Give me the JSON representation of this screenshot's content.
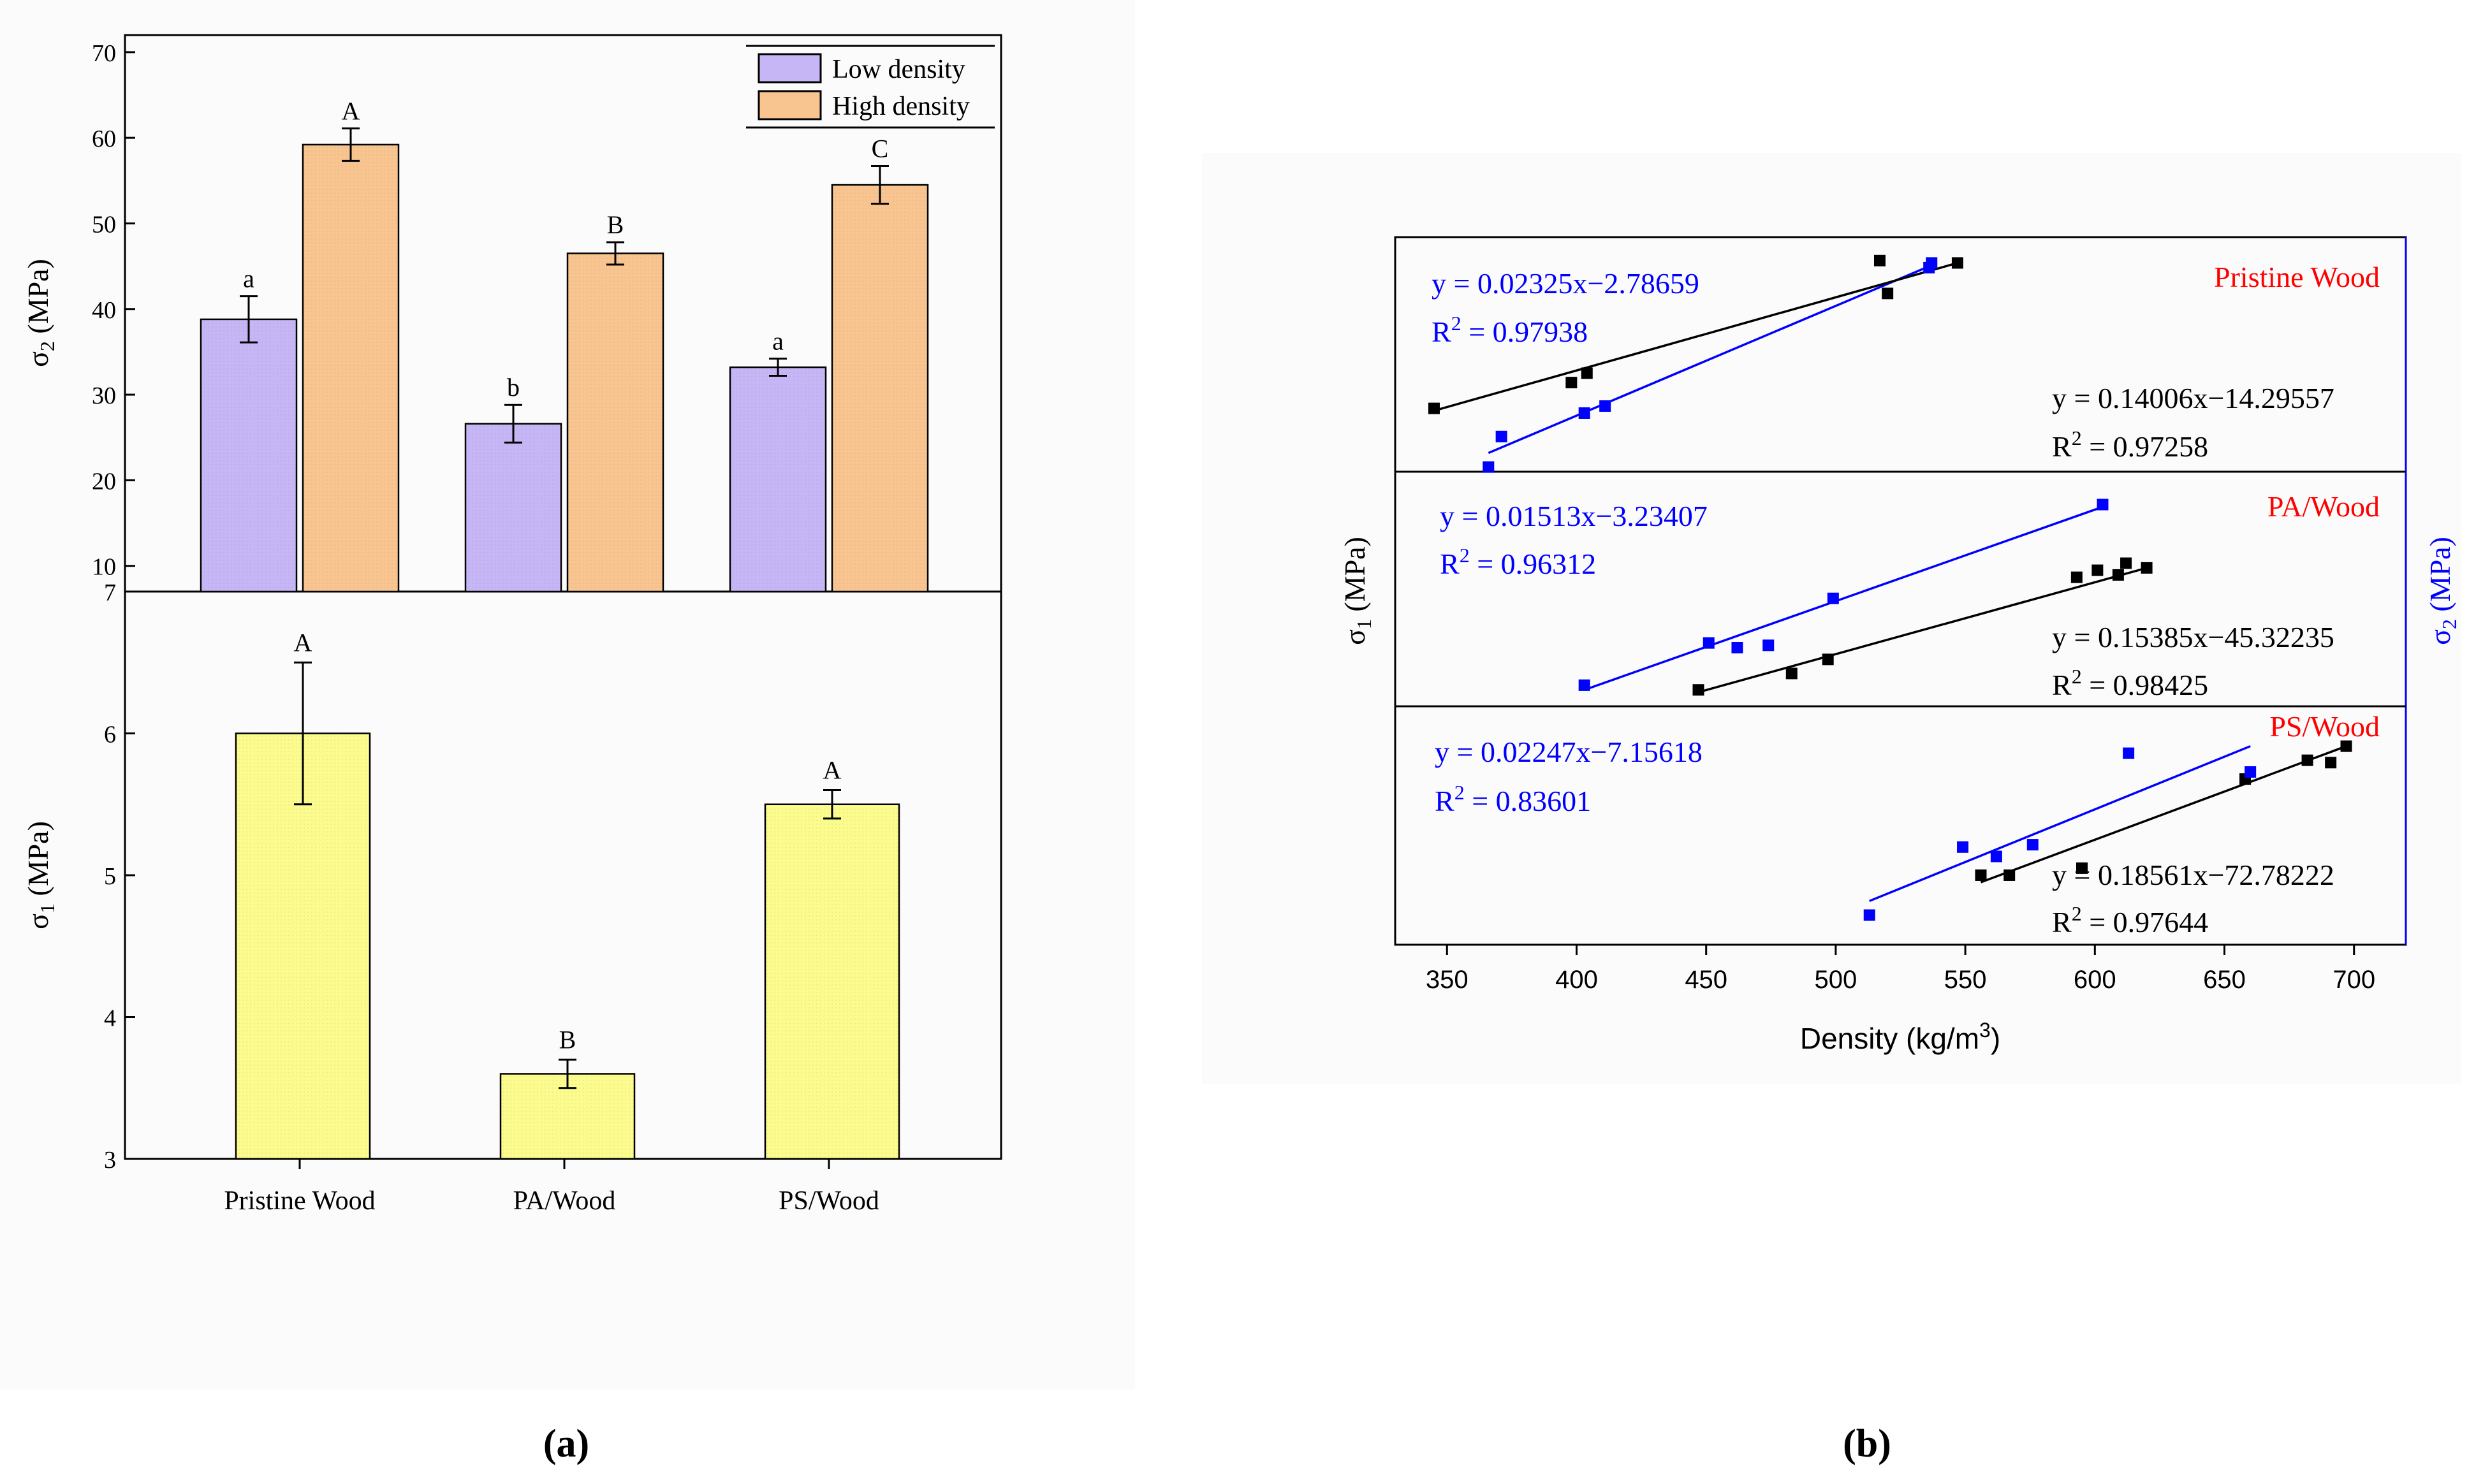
{
  "figure_labels": {
    "a": "(a)",
    "b": "(b)"
  },
  "colors": {
    "low_density": "#C7B6F5",
    "high_density": "#F8C590",
    "sigma1_bar": "#FBFB8E",
    "black_series": "#000000",
    "blue_series": "#0000FF",
    "panel_title": "#FF0000"
  },
  "chart_data": [
    {
      "id": "a_top",
      "type": "bar",
      "ylabel_main": "σ",
      "ylabel_sub": "2",
      "ylabel_unit": "(MPa)",
      "ylim": [
        7,
        72
      ],
      "yticks": [
        10,
        20,
        30,
        40,
        50,
        60,
        70
      ],
      "categories": [
        "Pristine Wood",
        "PA/Wood",
        "PS/Wood"
      ],
      "legend": [
        "Low density",
        "High density"
      ],
      "series": [
        {
          "name": "Low density",
          "values": [
            38.8,
            26.6,
            33.2
          ],
          "errors": [
            2.7,
            2.2,
            1.0
          ],
          "letters": [
            "a",
            "b",
            "a"
          ]
        },
        {
          "name": "High density",
          "values": [
            59.2,
            46.5,
            54.5
          ],
          "errors": [
            1.9,
            1.3,
            2.2
          ],
          "letters": [
            "A",
            "B",
            "C"
          ]
        }
      ]
    },
    {
      "id": "a_bottom",
      "type": "bar",
      "ylabel_main": "σ",
      "ylabel_sub": "1",
      "ylabel_unit": "(MPa)",
      "ylim": [
        3,
        7
      ],
      "yticks": [
        3,
        4,
        5,
        6,
        7
      ],
      "categories": [
        "Pristine Wood",
        "PA/Wood",
        "PS/Wood"
      ],
      "series": [
        {
          "name": "σ1",
          "values": [
            6.0,
            3.6,
            5.5
          ],
          "errors": [
            0.5,
            0.1,
            0.1
          ],
          "letters": [
            "A",
            "B",
            "A"
          ]
        }
      ]
    },
    {
      "id": "b",
      "type": "scatter",
      "xlabel": "Density (kg/m",
      "xlabel_sup": "3",
      "xlabel_close": ")",
      "xlim": [
        330,
        720
      ],
      "xticks": [
        350,
        400,
        450,
        500,
        550,
        600,
        650,
        700
      ],
      "ylabel_left": {
        "main": "σ",
        "sub": "1",
        "unit": "(MPa)"
      },
      "ylabel_right": {
        "main": "σ",
        "sub": "2",
        "unit": "(MPa)"
      },
      "panels": [
        {
          "title": "Pristine Wood",
          "black_eq": "y = 0.14006x−14.29557",
          "black_r2": "= 0.97258",
          "blue_eq": "y = 0.02325x−2.78659",
          "blue_r2": "= 0.97938",
          "black_points": [
            [
              345,
              0.73
            ],
            [
              398,
              0.62
            ],
            [
              404,
              0.58
            ],
            [
              517,
              0.1
            ],
            [
              520,
              0.24
            ],
            [
              547,
              0.11
            ]
          ],
          "blue_points": [
            [
              366,
              0.98
            ],
            [
              371,
              0.85
            ],
            [
              403,
              0.75
            ],
            [
              411,
              0.72
            ],
            [
              536,
              0.13
            ],
            [
              537,
              0.11
            ]
          ],
          "black_line": [
            [
              345,
              0.74
            ],
            [
              547,
              0.11
            ]
          ],
          "blue_line": [
            [
              366,
              0.92
            ],
            [
              537,
              0.12
            ]
          ]
        },
        {
          "title": "PA/Wood",
          "black_eq": "y = 0.15385x−45.32235",
          "black_r2": "= 0.98425",
          "blue_eq": "y = 0.01513x−3.23407",
          "blue_r2": "= 0.96312",
          "black_points": [
            [
              447,
              0.93
            ],
            [
              483,
              0.86
            ],
            [
              497,
              0.8
            ],
            [
              593,
              0.45
            ],
            [
              601,
              0.42
            ],
            [
              609,
              0.44
            ],
            [
              612,
              0.39
            ],
            [
              620,
              0.41
            ]
          ],
          "black_line": [
            [
              447,
              0.94
            ],
            [
              620,
              0.41
            ]
          ],
          "blue_points": [
            [
              403,
              0.91
            ],
            [
              451,
              0.73
            ],
            [
              462,
              0.75
            ],
            [
              474,
              0.74
            ],
            [
              499,
              0.54
            ],
            [
              603,
              0.14
            ]
          ],
          "blue_line": [
            [
              403,
              0.93
            ],
            [
              603,
              0.15
            ]
          ]
        },
        {
          "title": "PS/Wood",
          "black_eq": "y = 0.18561x−72.78222",
          "black_r2": "= 0.97644",
          "blue_eq": "y = 0.02247x−7.15618",
          "blue_r2": "= 0.83601",
          "black_points": [
            [
              556,
              0.72
            ],
            [
              567,
              0.72
            ],
            [
              595,
              0.69
            ],
            [
              658,
              0.31
            ],
            [
              682,
              0.23
            ],
            [
              691,
              0.24
            ],
            [
              697,
              0.17
            ]
          ],
          "black_line": [
            [
              556,
              0.75
            ],
            [
              697,
              0.17
            ]
          ],
          "blue_points": [
            [
              513,
              0.89
            ],
            [
              549,
              0.6
            ],
            [
              562,
              0.64
            ],
            [
              576,
              0.59
            ],
            [
              613,
              0.2
            ],
            [
              660,
              0.28
            ]
          ],
          "blue_line": [
            [
              513,
              0.83
            ],
            [
              660,
              0.17
            ]
          ]
        }
      ]
    }
  ]
}
